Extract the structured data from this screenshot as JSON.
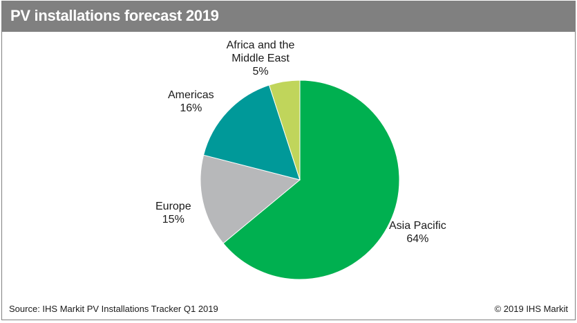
{
  "header": {
    "title": "PV installations forecast 2019"
  },
  "chart_data": {
    "type": "pie",
    "title": "PV installations forecast 2019",
    "slices": [
      {
        "label": "Asia Pacific",
        "value": 64,
        "display": "64%",
        "color": "#00b050"
      },
      {
        "label": "Europe",
        "value": 15,
        "display": "15%",
        "color": "#b7b8ba"
      },
      {
        "label": "Americas",
        "value": 16,
        "display": "16%",
        "color": "#009999"
      },
      {
        "label": "Africa and the Middle East",
        "value": 5,
        "display": "5%",
        "color": "#c0d55b"
      }
    ]
  },
  "footer": {
    "source": "Source: IHS Markit PV Installations Tracker Q1 2019",
    "copyright": "© 2019 IHS Markit"
  }
}
